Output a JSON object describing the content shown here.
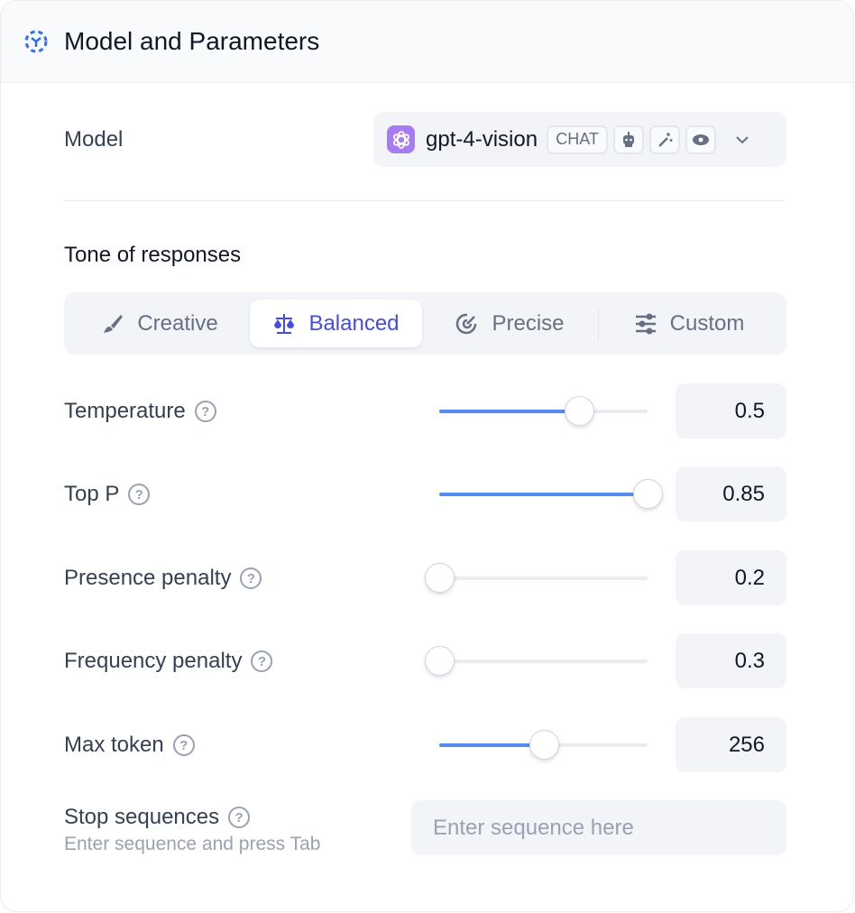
{
  "header": {
    "title": "Model and Parameters",
    "icon": "dashed-cube-icon"
  },
  "model": {
    "label": "Model",
    "name": "gpt-4-vision",
    "badge": "CHAT",
    "capabilities": [
      "robot-icon",
      "magic-wand-icon",
      "eye-icon"
    ]
  },
  "tone": {
    "label": "Tone of responses",
    "tabs": [
      {
        "label": "Creative",
        "icon": "brush-icon"
      },
      {
        "label": "Balanced",
        "icon": "scale-icon",
        "active": true
      },
      {
        "label": "Precise",
        "icon": "target-icon"
      },
      {
        "label": "Custom",
        "icon": "sliders-icon"
      }
    ]
  },
  "params": [
    {
      "label": "Temperature",
      "value": "0.5",
      "fill_percent": 67
    },
    {
      "label": "Top P",
      "value": "0.85",
      "fill_percent": 100
    },
    {
      "label": "Presence penalty",
      "value": "0.2",
      "fill_percent": 0
    },
    {
      "label": "Frequency penalty",
      "value": "0.3",
      "fill_percent": 0
    },
    {
      "label": "Max token",
      "value": "256",
      "fill_percent": 50
    }
  ],
  "stop": {
    "label": "Stop sequences",
    "hint": "Enter sequence and press Tab",
    "placeholder": "Enter sequence here"
  },
  "colors": {
    "accent": "#444ce7",
    "slider": "#528bff"
  }
}
